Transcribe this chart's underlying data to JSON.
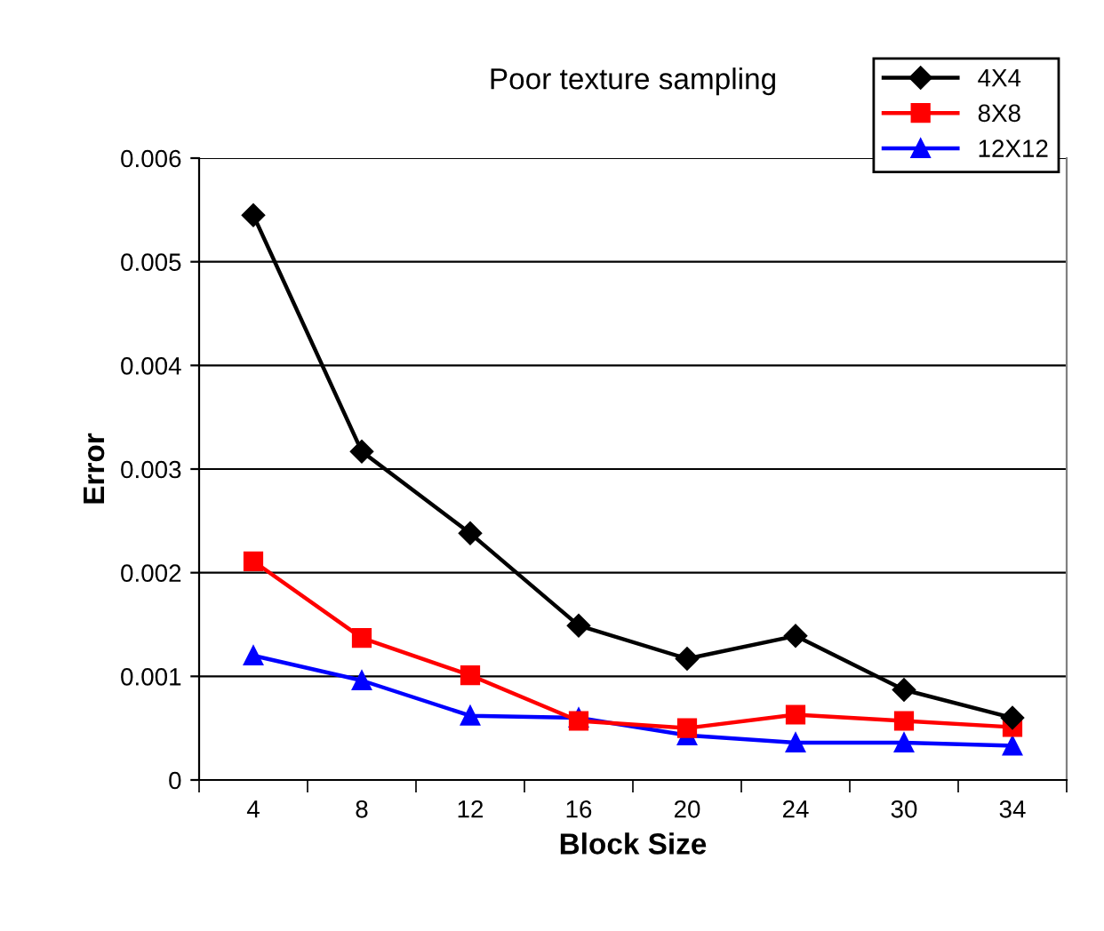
{
  "chart_data": {
    "type": "line",
    "title": "Poor texture sampling",
    "xlabel": "Block Size",
    "ylabel": "Error",
    "categories": [
      "4",
      "8",
      "12",
      "16",
      "20",
      "24",
      "30",
      "34"
    ],
    "series": [
      {
        "name": "4X4",
        "color": "#000000",
        "marker": "diamond",
        "values": [
          0.00545,
          0.00317,
          0.00238,
          0.00149,
          0.00117,
          0.00139,
          0.00087,
          0.0006
        ]
      },
      {
        "name": "8X8",
        "color": "#ff0000",
        "marker": "square",
        "values": [
          0.00211,
          0.00137,
          0.00101,
          0.00057,
          0.0005,
          0.00063,
          0.00057,
          0.00051
        ]
      },
      {
        "name": "12X12",
        "color": "#0000ff",
        "marker": "triangle",
        "values": [
          0.0012,
          0.00096,
          0.00062,
          0.0006,
          0.00043,
          0.00036,
          0.00036,
          0.00033
        ]
      }
    ],
    "ylim": [
      0,
      0.006
    ],
    "yticks": [
      {
        "value": 0,
        "label": "0"
      },
      {
        "value": 0.001,
        "label": "0.001"
      },
      {
        "value": 0.002,
        "label": "0.002"
      },
      {
        "value": 0.003,
        "label": "0.003"
      },
      {
        "value": 0.004,
        "label": "0.004"
      },
      {
        "value": 0.005,
        "label": "0.005"
      },
      {
        "value": 0.006,
        "label": "0.006"
      }
    ],
    "grid": "y",
    "legend": "top right",
    "line_style": "solid"
  }
}
